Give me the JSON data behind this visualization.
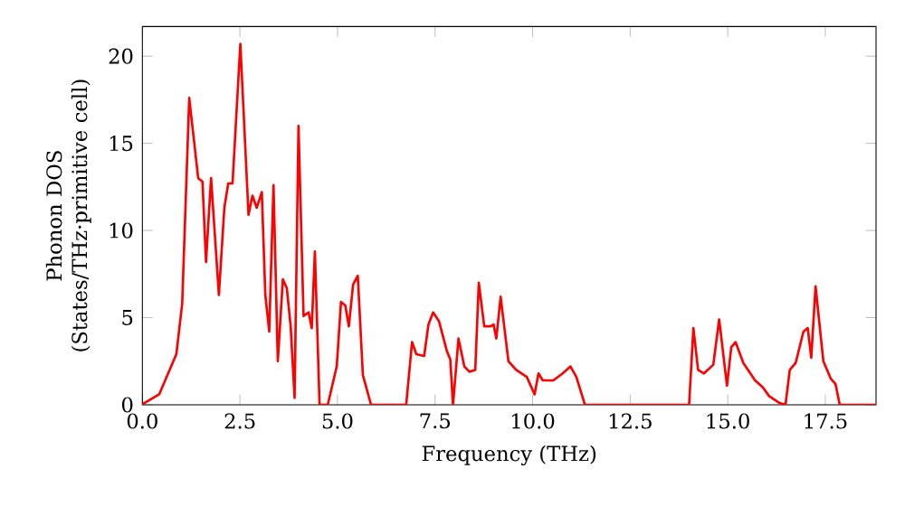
{
  "chart_data": {
    "type": "line",
    "xlabel": "Frequency (THz)",
    "ylabel": "Phonon DOS (States/THz·primitive cell)",
    "xlim": [
      0,
      18.8
    ],
    "ylim": [
      0,
      21.7
    ],
    "xticks": [
      {
        "value": 0,
        "label": "0.0"
      },
      {
        "value": 2.5,
        "label": "2.5"
      },
      {
        "value": 5,
        "label": "5.0"
      },
      {
        "value": 7.5,
        "label": "7.5"
      },
      {
        "value": 10,
        "label": "10.0"
      },
      {
        "value": 12.5,
        "label": "12.5"
      },
      {
        "value": 15,
        "label": "15.0"
      },
      {
        "value": 17.5,
        "label": "17.5"
      }
    ],
    "yticks": [
      0,
      5,
      10,
      15,
      20
    ],
    "grid": false,
    "marker": "none",
    "line_style": "solid",
    "series": [
      {
        "color": "#ff0000",
        "x": [
          0,
          0.05,
          0.43,
          0.87,
          1.02,
          1.2,
          1.43,
          1.54,
          1.63,
          1.76,
          1.96,
          2.1,
          2.2,
          2.31,
          2.51,
          2.72,
          2.82,
          2.93,
          3.06,
          3.15,
          3.25,
          3.36,
          3.47,
          3.6,
          3.7,
          3.8,
          3.9,
          4.0,
          4.13,
          4.26,
          4.34,
          4.42,
          4.54,
          4.75,
          4.98,
          5.09,
          5.2,
          5.29,
          5.4,
          5.52,
          5.65,
          5.86,
          6.76,
          6.91,
          7.02,
          7.22,
          7.33,
          7.45,
          7.6,
          7.8,
          7.89,
          7.96,
          8.1,
          8.25,
          8.38,
          8.53,
          8.62,
          8.76,
          8.92,
          9.0,
          9.07,
          9.18,
          9.38,
          9.58,
          9.85,
          10.05,
          10.15,
          10.26,
          10.53,
          10.77,
          10.97,
          11.12,
          11.34,
          14.01,
          14.12,
          14.24,
          14.39,
          14.63,
          14.78,
          14.98,
          15.09,
          15.2,
          15.4,
          15.7,
          15.9,
          16.06,
          16.33,
          16.48,
          16.59,
          16.74,
          16.94,
          17.05,
          17.14,
          17.25,
          17.45,
          17.64,
          17.76,
          17.87,
          18.8
        ],
        "values": [
          0,
          0.1,
          0.6,
          2.9,
          5.8,
          17.6,
          13,
          12.8,
          8.2,
          13,
          6.3,
          11.3,
          12.7,
          12.7,
          20.7,
          10.9,
          12.0,
          11.3,
          12.2,
          6.3,
          4.2,
          12.6,
          2.5,
          7.2,
          6.7,
          4.5,
          0.4,
          16.0,
          5.1,
          5.3,
          4.4,
          8.8,
          0,
          0,
          2.2,
          5.9,
          5.7,
          4.5,
          6.9,
          7.4,
          1.7,
          0,
          0,
          3.6,
          2.9,
          2.8,
          4.6,
          5.3,
          4.8,
          3.1,
          2.6,
          0,
          3.8,
          2.2,
          1.9,
          2.0,
          7.0,
          4.5,
          4.5,
          4.6,
          3.8,
          6.2,
          2.5,
          2.0,
          1.6,
          0.6,
          1.8,
          1.4,
          1.4,
          1.8,
          2.2,
          1.6,
          0,
          0,
          4.4,
          2.0,
          1.8,
          2.3,
          4.9,
          1.1,
          3.3,
          3.6,
          2.4,
          1.4,
          1.0,
          0.5,
          0.1,
          0,
          2.0,
          2.4,
          4.2,
          4.4,
          2.7,
          6.8,
          2.5,
          1.5,
          1.2,
          0,
          0
        ]
      }
    ]
  }
}
